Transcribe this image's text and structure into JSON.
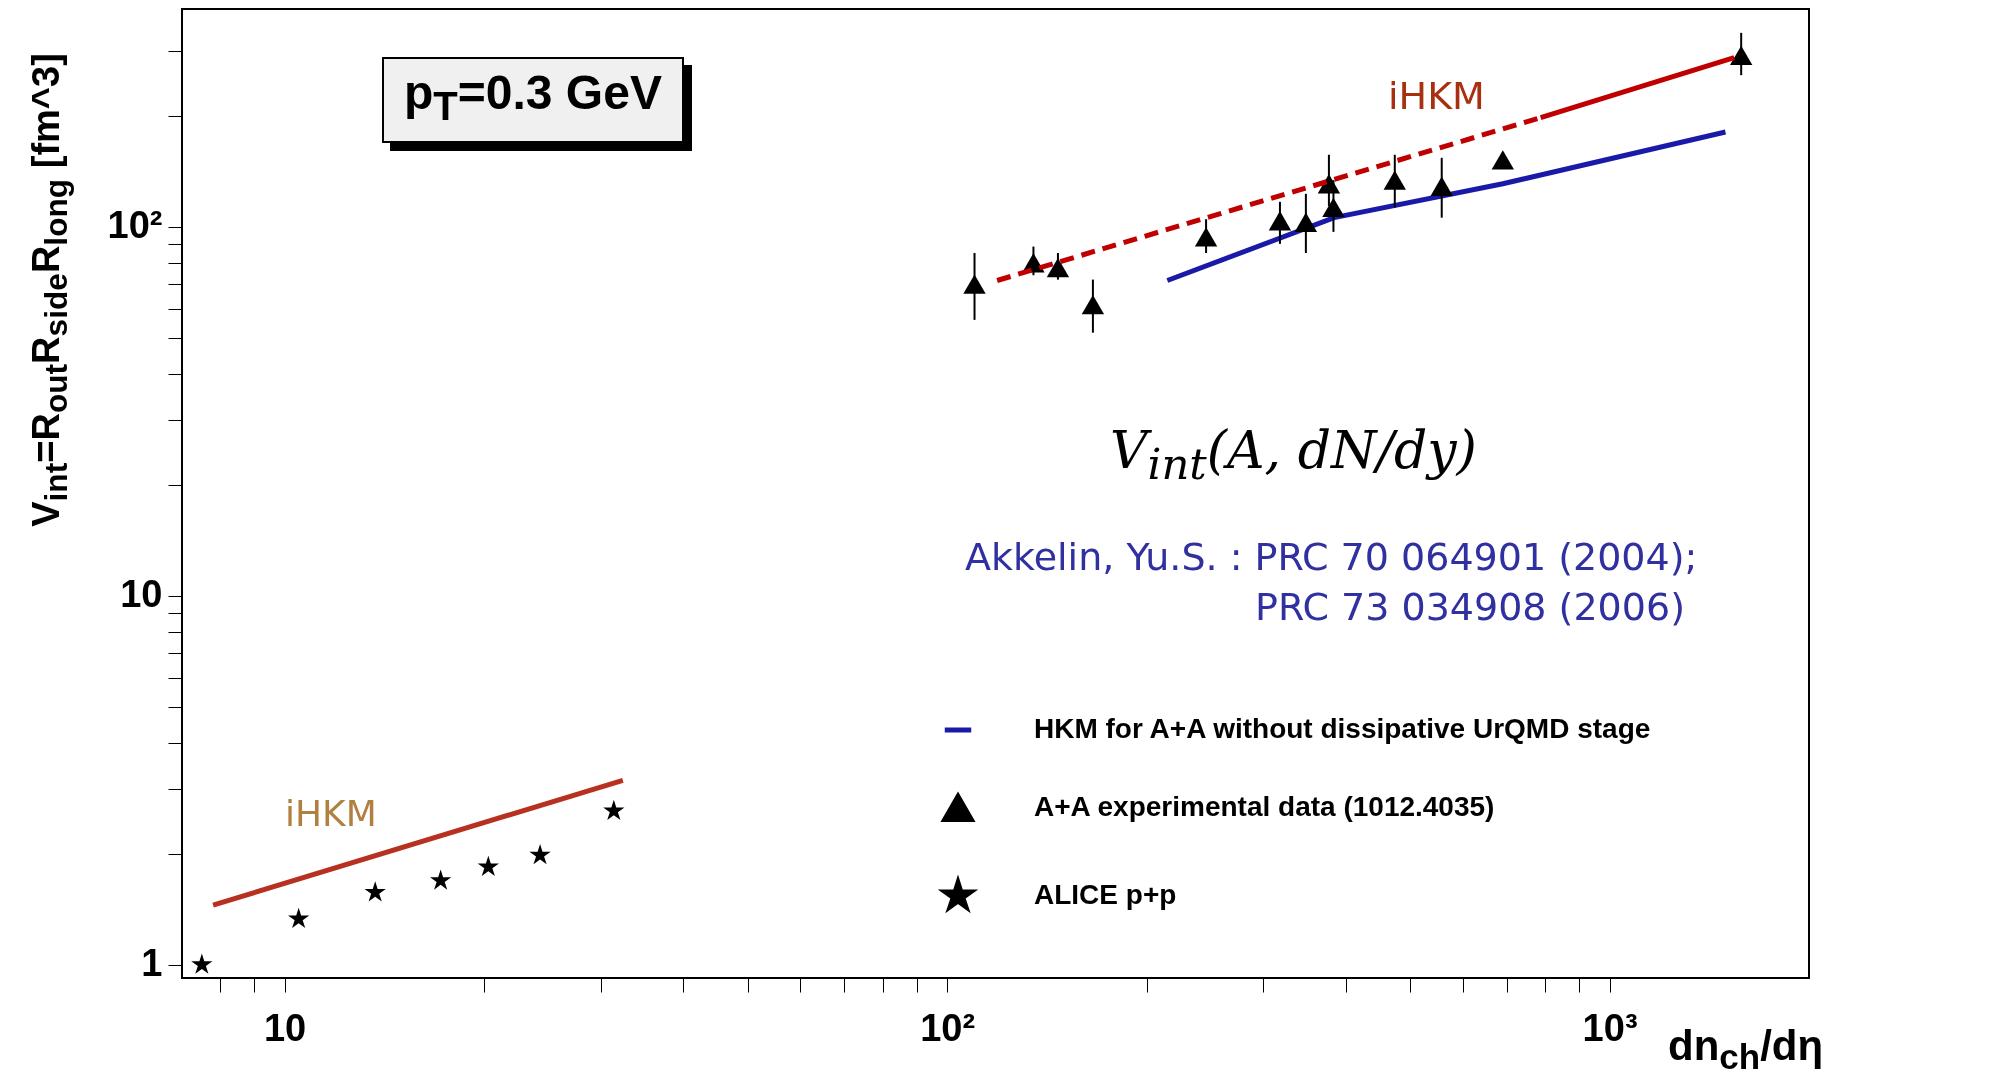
{
  "chart_data": {
    "type": "scatter",
    "xlabel": "dn$_{ch}$/dη",
    "ylabel": "V$_{int}$=R$_{out}$R$_{side}$R$_{long}$ [fm^3]",
    "log": "xy",
    "xlim": [
      7,
      2000
    ],
    "ylim": [
      0.92,
      390
    ],
    "xticks": [
      {
        "value": 8,
        "label": null
      },
      {
        "value": 9,
        "label": null
      },
      10,
      {
        "value": 20,
        "label": null
      },
      {
        "value": 30,
        "label": null
      },
      {
        "value": 40,
        "label": null
      },
      {
        "value": 50,
        "label": null
      },
      {
        "value": 60,
        "label": null
      },
      {
        "value": 70,
        "label": null
      },
      {
        "value": 80,
        "label": null
      },
      {
        "value": 90,
        "label": null
      },
      {
        "value": 100,
        "label": "10²"
      },
      {
        "value": 200,
        "label": null
      },
      {
        "value": 300,
        "label": null
      },
      {
        "value": 400,
        "label": null
      },
      {
        "value": 500,
        "label": null
      },
      {
        "value": 600,
        "label": null
      },
      {
        "value": 700,
        "label": null
      },
      {
        "value": 800,
        "label": null
      },
      {
        "value": 900,
        "label": null
      },
      {
        "value": 1000,
        "label": "10³"
      }
    ],
    "yticks": [
      1,
      {
        "value": 2,
        "label": null
      },
      {
        "value": 3,
        "label": null
      },
      {
        "value": 4,
        "label": null
      },
      {
        "value": 5,
        "label": null
      },
      {
        "value": 6,
        "label": null
      },
      {
        "value": 7,
        "label": null
      },
      {
        "value": 8,
        "label": null
      },
      {
        "value": 9,
        "label": null
      },
      10,
      {
        "value": 20,
        "label": null
      },
      {
        "value": 30,
        "label": null
      },
      {
        "value": 40,
        "label": null
      },
      {
        "value": 50,
        "label": null
      },
      {
        "value": 60,
        "label": null
      },
      {
        "value": 70,
        "label": null
      },
      {
        "value": 80,
        "label": null
      },
      {
        "value": 90,
        "label": null
      },
      {
        "value": 100,
        "label": "10²"
      },
      {
        "value": 200,
        "label": null
      },
      {
        "value": 300,
        "label": null
      }
    ],
    "grid": false,
    "legend": "bottom right",
    "series": [
      {
        "name": "HKM for A+A without dissipative UrQMD stage",
        "type": "line",
        "color": "#1a1aa8",
        "line_style": "solid",
        "marker": "none",
        "x": [
          215,
          384,
          690,
          1496
        ],
        "values": [
          71.6,
          106,
          131,
          181
        ]
      },
      {
        "name": "A+A experimental data (1012.4035)",
        "color": "#000000",
        "marker": "triangle",
        "x": [
          110,
          135,
          147,
          166,
          246,
          318,
          348,
          377,
          383,
          474,
          558,
          690,
          1580
        ],
        "values": [
          70,
          80,
          77.6,
          61.6,
          94,
          104,
          103,
          131,
          113,
          134,
          129,
          152,
          292
        ],
        "errors": [
          [
            56,
            85
          ],
          [
            74,
            88.5
          ],
          [
            72,
            85
          ],
          [
            51.7,
            72
          ],
          [
            85,
            105
          ],
          [
            90,
            117
          ],
          [
            85,
            123
          ],
          [
            114,
            157
          ],
          [
            97,
            134
          ],
          [
            113,
            157
          ],
          [
            106,
            154
          ],
          null,
          [
            258,
            336
          ]
        ]
      },
      {
        "name": "ALICE p+p",
        "color": "#000000",
        "marker": "star",
        "x": [
          7.5,
          10.5,
          13.7,
          17.2,
          20.3,
          24.3,
          31.4
        ],
        "values": [
          1.0,
          1.33,
          1.57,
          1.69,
          1.84,
          1.98,
          2.61
        ]
      },
      {
        "type": "line",
        "color": "#c00000",
        "line_style": "dashed",
        "marker": "none",
        "x": [
          119,
          787
        ],
        "values": [
          71.6,
          198
        ]
      },
      {
        "type": "line",
        "color": "#c00000",
        "line_style": "solid",
        "marker": "none",
        "x": [
          787,
          1542
        ],
        "values": [
          198,
          288
        ]
      },
      {
        "type": "line",
        "color": "#b83020",
        "line_style": "solid",
        "marker": "none",
        "x": [
          7.8,
          32.4
        ],
        "values": [
          1.45,
          3.16
        ]
      }
    ],
    "annotations": [
      "p$_{T}$=0.3 GeV",
      "V$_{int}$(A, dN/dy)",
      "Akkelin, Yu.S. : PRC 70 064901 (2004);",
      "PRC 73 034908 (2006)",
      "iHKM",
      "iHKM"
    ]
  }
}
